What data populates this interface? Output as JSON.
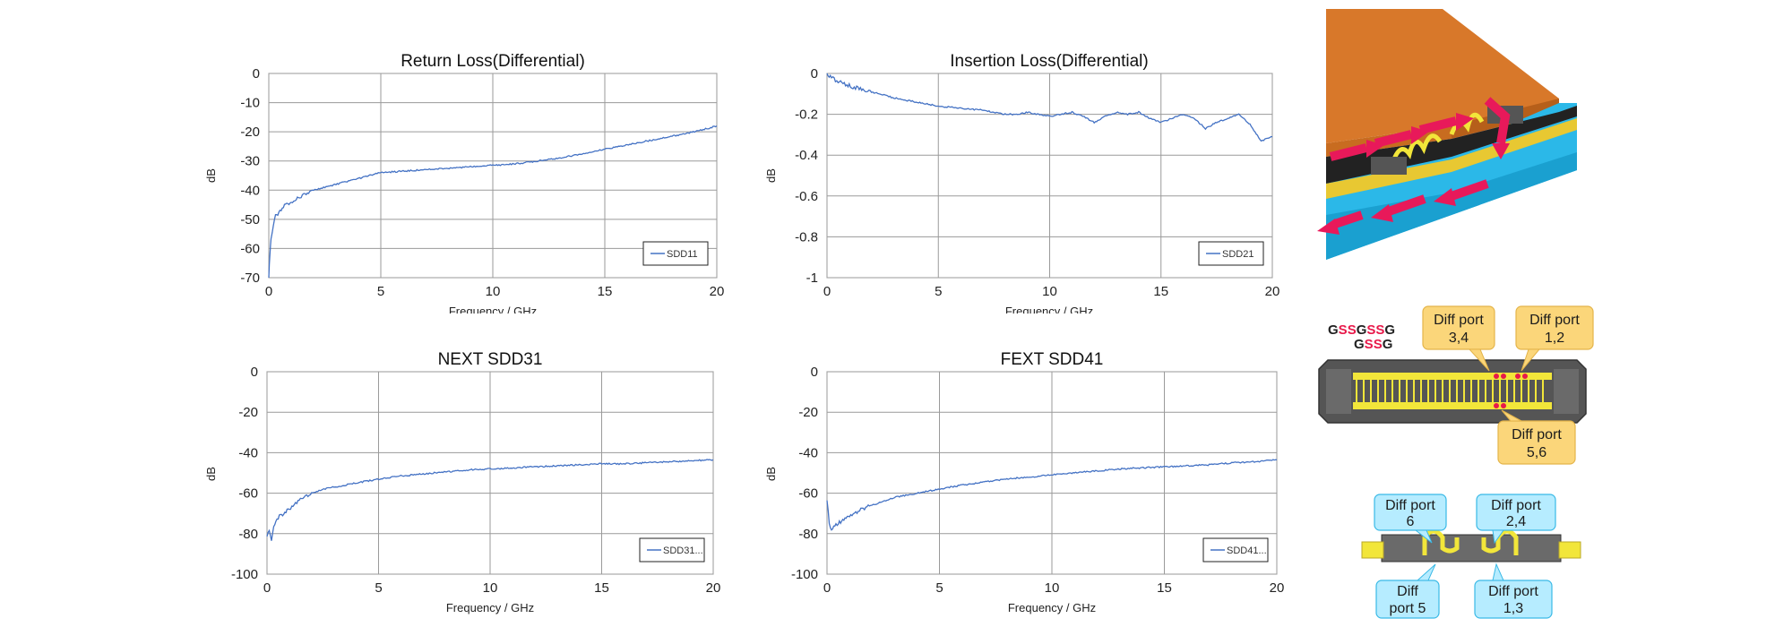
{
  "chart_data": [
    {
      "type": "line",
      "title": "Return Loss(Differential)",
      "xlabel": "Frequency / GHz",
      "ylabel": "dB",
      "xlim": [
        0,
        20
      ],
      "ylim": [
        -70,
        0
      ],
      "xticks": [
        0,
        5,
        10,
        15,
        20
      ],
      "yticks": [
        0,
        -10,
        -20,
        -30,
        -40,
        -50,
        -60,
        -70
      ],
      "grid": true,
      "legend_position": "bottom-right",
      "series": [
        {
          "name": "SDD11",
          "color": "#4472c4",
          "x": [
            0,
            0.05,
            0.1,
            0.2,
            0.3,
            0.5,
            0.75,
            1,
            1.5,
            2,
            2.5,
            3,
            4,
            5,
            6,
            7,
            8,
            9,
            10,
            11,
            12,
            13,
            14,
            15,
            16,
            17,
            18,
            19,
            19.5,
            20
          ],
          "y": [
            -70,
            -62,
            -57,
            -52,
            -49,
            -47,
            -45,
            -44,
            -42,
            -40,
            -39,
            -38,
            -36,
            -34,
            -33.5,
            -33,
            -32.5,
            -32,
            -31.5,
            -31,
            -30,
            -29,
            -27.5,
            -26,
            -24.5,
            -23,
            -21.5,
            -20,
            -19,
            -18
          ]
        }
      ]
    },
    {
      "type": "line",
      "title": "Insertion Loss(Differential)",
      "xlabel": "Frequency / GHz",
      "ylabel": "dB",
      "xlim": [
        0,
        20
      ],
      "ylim": [
        -1,
        0
      ],
      "xticks": [
        0,
        5,
        10,
        15,
        20
      ],
      "yticks": [
        0,
        -0.2,
        -0.4,
        -0.6,
        -0.8,
        -1
      ],
      "grid": true,
      "legend_position": "bottom-right",
      "series": [
        {
          "name": "SDD21",
          "color": "#4472c4",
          "x": [
            0,
            0.2,
            0.5,
            1,
            2,
            3,
            4,
            5,
            6,
            7,
            7.5,
            8,
            8.5,
            9,
            9.5,
            10,
            10.5,
            11,
            11.5,
            12,
            12.5,
            13,
            13.5,
            14,
            14.5,
            15,
            15.5,
            16,
            16.5,
            17,
            17.5,
            18,
            18.5,
            19,
            19.5,
            20
          ],
          "y": [
            0,
            -0.02,
            -0.04,
            -0.06,
            -0.09,
            -0.12,
            -0.14,
            -0.16,
            -0.17,
            -0.18,
            -0.19,
            -0.2,
            -0.2,
            -0.19,
            -0.2,
            -0.21,
            -0.2,
            -0.19,
            -0.21,
            -0.24,
            -0.21,
            -0.19,
            -0.2,
            -0.19,
            -0.22,
            -0.24,
            -0.22,
            -0.2,
            -0.22,
            -0.27,
            -0.24,
            -0.22,
            -0.2,
            -0.25,
            -0.33,
            -0.31
          ]
        }
      ]
    },
    {
      "type": "line",
      "title": "NEXT SDD31",
      "xlabel": "Frequency / GHz",
      "ylabel": "dB",
      "xlim": [
        0,
        20
      ],
      "ylim": [
        -100,
        0
      ],
      "xticks": [
        0,
        5,
        10,
        15,
        20
      ],
      "yticks": [
        0,
        -20,
        -40,
        -60,
        -80,
        -100
      ],
      "grid": true,
      "legend_position": "bottom-right",
      "series": [
        {
          "name": "SDD31...",
          "color": "#4472c4",
          "x": [
            0,
            0.1,
            0.2,
            0.3,
            0.5,
            0.75,
            1,
            1.5,
            2,
            2.5,
            3,
            4,
            5,
            6,
            7,
            8,
            9,
            10,
            11,
            12,
            13,
            14,
            15,
            16,
            17,
            18,
            19,
            20
          ],
          "y": [
            -82,
            -78,
            -83,
            -76,
            -72,
            -70,
            -68,
            -63,
            -60,
            -58,
            -57,
            -55,
            -53,
            -51.5,
            -50.5,
            -49.5,
            -48.5,
            -48,
            -47.5,
            -47,
            -46.5,
            -46,
            -45.5,
            -45.5,
            -45,
            -44.5,
            -44,
            -43.5
          ]
        }
      ]
    },
    {
      "type": "line",
      "title": "FEXT SDD41",
      "xlabel": "Frequency / GHz",
      "ylabel": "dB",
      "xlim": [
        0,
        20
      ],
      "ylim": [
        -100,
        0
      ],
      "xticks": [
        0,
        5,
        10,
        15,
        20
      ],
      "yticks": [
        0,
        -20,
        -40,
        -60,
        -80,
        -100
      ],
      "grid": true,
      "legend_position": "bottom-right",
      "series": [
        {
          "name": "SDD41...",
          "color": "#4472c4",
          "x": [
            0,
            0.1,
            0.2,
            0.3,
            0.5,
            0.75,
            1,
            1.5,
            2,
            2.5,
            3,
            4,
            5,
            6,
            7,
            8,
            9,
            10,
            11,
            12,
            13,
            14,
            15,
            16,
            17,
            18,
            19,
            20
          ],
          "y": [
            -63,
            -75,
            -79,
            -77,
            -75,
            -73,
            -71,
            -68,
            -66,
            -64,
            -62,
            -60,
            -58,
            -56,
            -54.5,
            -53,
            -52,
            -51,
            -50,
            -49,
            -48,
            -47.5,
            -47,
            -46.5,
            -46,
            -45,
            -44.5,
            -43.5
          ]
        }
      ]
    }
  ],
  "diagrams": {
    "signal_labels": {
      "row1": [
        {
          "text": "G",
          "color": "#222222"
        },
        {
          "text": "S",
          "color": "#e8194a"
        },
        {
          "text": "S",
          "color": "#e8194a"
        },
        {
          "text": "G",
          "color": "#222222"
        },
        {
          "text": "S",
          "color": "#e8194a"
        },
        {
          "text": "S",
          "color": "#e8194a"
        },
        {
          "text": "G",
          "color": "#222222"
        }
      ],
      "row2": [
        {
          "text": "G",
          "color": "#222222"
        },
        {
          "text": "S",
          "color": "#e8194a"
        },
        {
          "text": "S",
          "color": "#e8194a"
        },
        {
          "text": "G",
          "color": "#222222"
        }
      ]
    },
    "callouts_yellow": [
      {
        "line1": "Diff port",
        "line2": "3,4"
      },
      {
        "line1": "Diff port",
        "line2": "1,2"
      },
      {
        "line1": "Diff port",
        "line2": "5,6"
      }
    ],
    "callouts_blue": [
      {
        "line1": "Diff port",
        "line2": "6"
      },
      {
        "line1": "Diff port",
        "line2": "2,4"
      },
      {
        "line1": "Diff",
        "line2": "port 5"
      },
      {
        "line1": "Diff port",
        "line2": "1,3"
      }
    ],
    "colors": {
      "pcb_top": "#d8782a",
      "pcb_bottom": "#2bb8e8",
      "arrow": "#e8195a",
      "trace": "#f2e63a",
      "callout_yellow": "#fbd67a",
      "callout_blue": "#b6ecff"
    }
  }
}
